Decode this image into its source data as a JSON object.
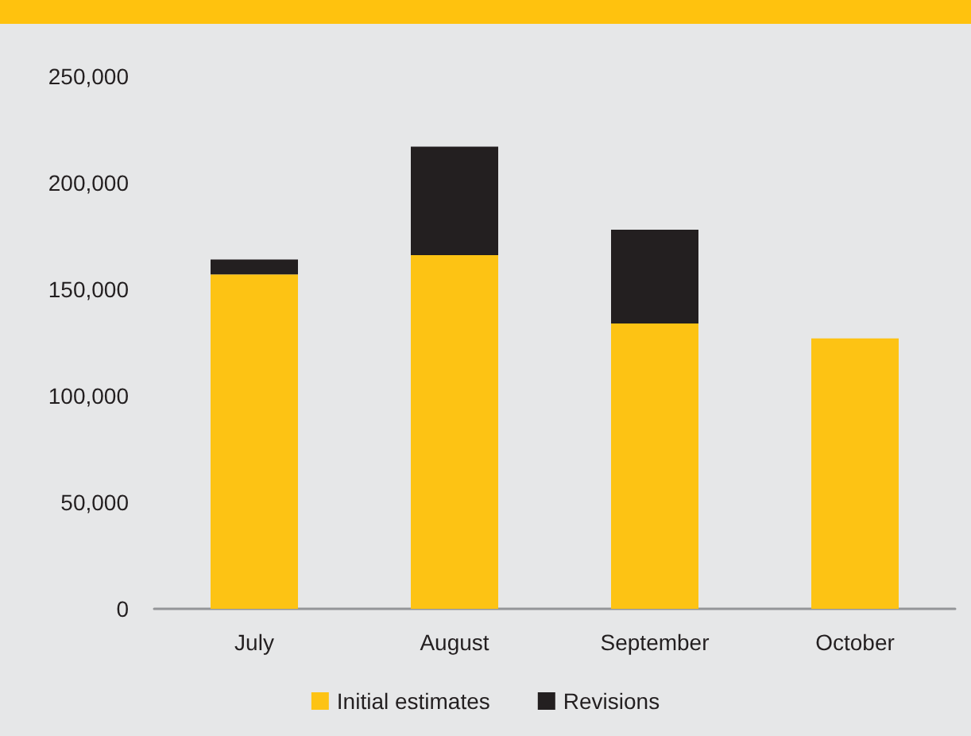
{
  "chart_data": {
    "type": "bar",
    "stacked": true,
    "categories": [
      "July",
      "August",
      "September",
      "October"
    ],
    "series": [
      {
        "name": "Initial estimates",
        "color": "#fdc314",
        "values": [
          157000,
          166000,
          134000,
          127000
        ]
      },
      {
        "name": "Revisions",
        "color": "#231f20",
        "values": [
          7000,
          51000,
          44000,
          null
        ]
      }
    ],
    "ylim": [
      0,
      250000
    ],
    "yticks": [
      {
        "value": 0,
        "label": "0"
      },
      {
        "value": 50000,
        "label": "50,000"
      },
      {
        "value": 100000,
        "label": "100,000"
      },
      {
        "value": 150000,
        "label": "150,000"
      },
      {
        "value": 200000,
        "label": "200,000"
      },
      {
        "value": 250000,
        "label": "250,000"
      }
    ],
    "grid": false,
    "legend": "bottom"
  }
}
